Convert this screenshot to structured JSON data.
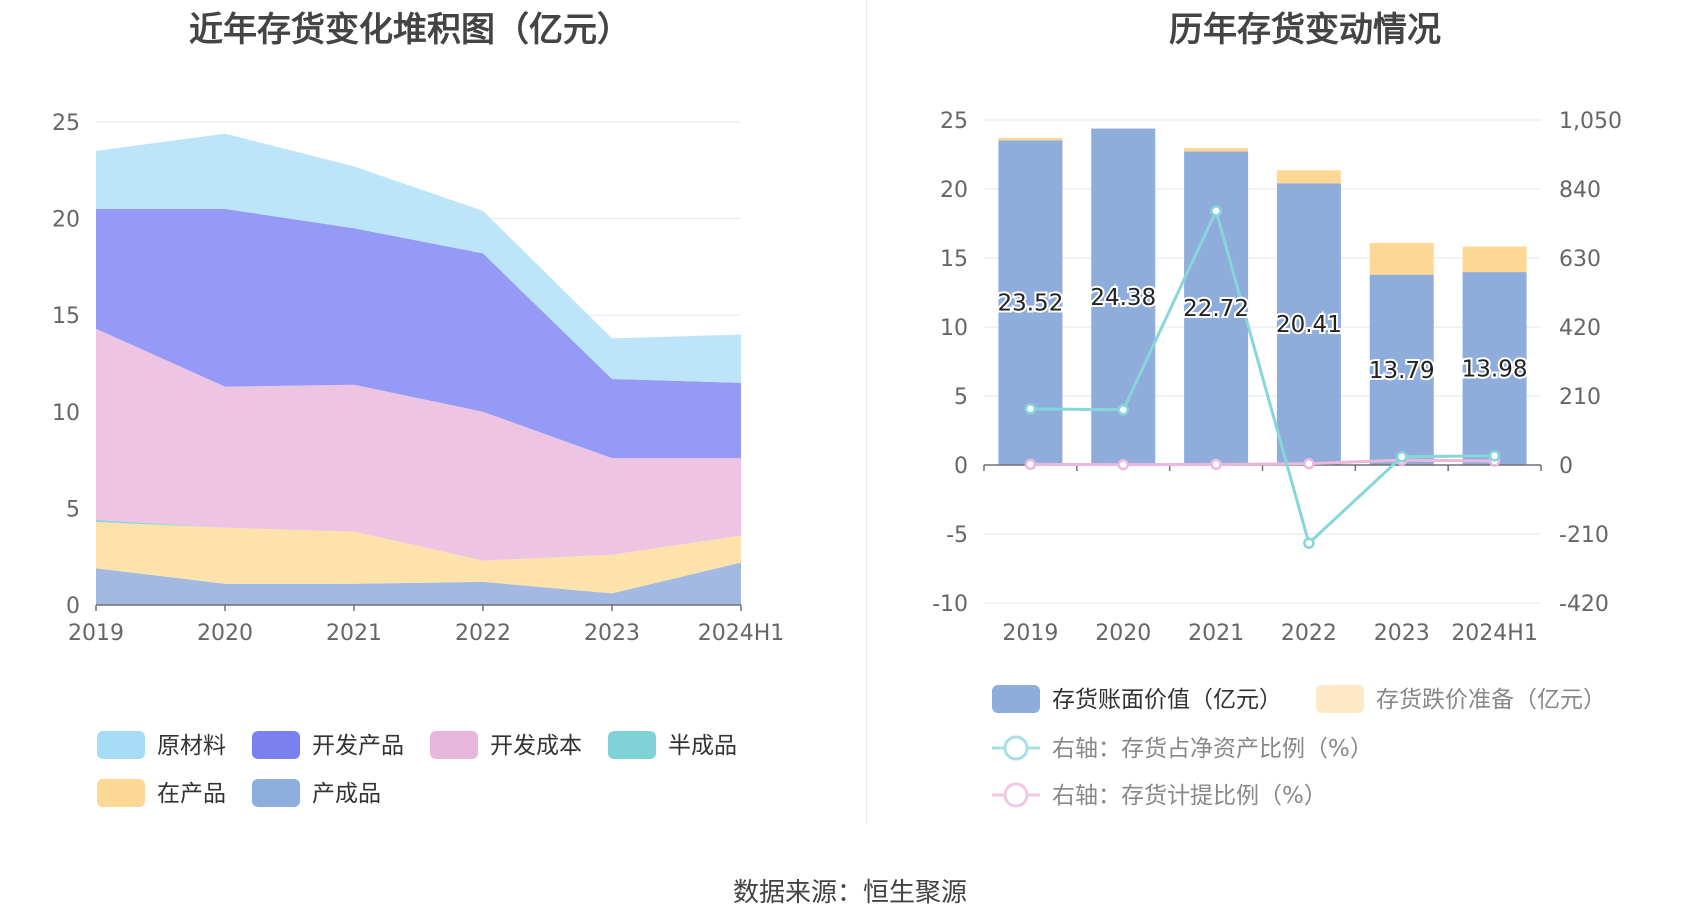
{
  "left_chart": {
    "title": "近年存货变化堆积图（亿元）",
    "chart_data": {
      "type": "area",
      "stacked": true,
      "categories": [
        "2019",
        "2020",
        "2021",
        "2022",
        "2023",
        "2024H1"
      ],
      "ylim": [
        0,
        25
      ],
      "yticks": [
        0,
        5,
        10,
        15,
        20,
        25
      ],
      "grid": true,
      "legend_position": "bottom",
      "series": [
        {
          "name": "产成品",
          "color": "#9db5e0",
          "values": [
            1.9,
            1.1,
            1.1,
            1.2,
            0.6,
            2.2
          ]
        },
        {
          "name": "在产品",
          "color": "#fde0a8",
          "values": [
            2.4,
            2.9,
            2.7,
            1.1,
            2.0,
            1.4
          ]
        },
        {
          "name": "半成品",
          "color": "#7fd3d6",
          "values": [
            0.1,
            0.0,
            0.0,
            0.0,
            0.0,
            0.0
          ]
        },
        {
          "name": "开发成本",
          "color": "#ecc2e1",
          "values": [
            9.9,
            7.3,
            7.6,
            7.7,
            5.0,
            4.0
          ]
        },
        {
          "name": "开发产品",
          "color": "#8e95f6",
          "values": [
            6.2,
            9.2,
            8.1,
            8.2,
            4.1,
            3.9
          ]
        },
        {
          "name": "原材料",
          "color": "#b8e4f9",
          "values": [
            3.0,
            3.9,
            3.2,
            2.2,
            2.1,
            2.5
          ]
        }
      ]
    },
    "legend": [
      {
        "label": "原材料",
        "color": "#a6dcf6"
      },
      {
        "label": "开发产品",
        "color": "#7b80f0"
      },
      {
        "label": "开发成本",
        "color": "#e7b6dc"
      },
      {
        "label": "半成品",
        "color": "#7fd3d6"
      },
      {
        "label": "在产品",
        "color": "#fdd894"
      },
      {
        "label": "产成品",
        "color": "#8eaedd"
      }
    ]
  },
  "right_chart": {
    "title": "历年存货变动情况",
    "chart_data": {
      "type": "bar",
      "stacked": true,
      "categories": [
        "2019",
        "2020",
        "2021",
        "2022",
        "2023",
        "2024H1"
      ],
      "ylim": [
        -10,
        25
      ],
      "yticks": [
        -10,
        -5,
        0,
        5,
        10,
        15,
        20,
        25
      ],
      "y2lim": [
        -420,
        1050
      ],
      "y2ticks": [
        "-420",
        "-210",
        "0",
        "210",
        "420",
        "630",
        "840",
        "1,050"
      ],
      "grid": true,
      "legend_position": "bottom",
      "series": [
        {
          "name": "存货账面价值（亿元）",
          "type": "bar",
          "color": "#8eaddb",
          "values": [
            23.52,
            24.38,
            22.72,
            20.41,
            13.79,
            13.98
          ],
          "labels": [
            "23.52",
            "24.38",
            "22.72",
            "20.41",
            "13.79",
            "13.98"
          ]
        },
        {
          "name": "存货跌价准备（亿元）",
          "type": "bar",
          "color": "#fdd894",
          "values": [
            0.18,
            0.0,
            0.25,
            0.95,
            2.3,
            1.85
          ]
        },
        {
          "name": "右轴：存货占净资产比例（%）",
          "type": "line",
          "axis": "right",
          "color": "#86d6da",
          "values": [
            171,
            168,
            773,
            -238,
            25,
            28
          ]
        },
        {
          "name": "右轴：存货计提比例（%）",
          "type": "line",
          "axis": "right",
          "color": "#eab8dc",
          "values": [
            2,
            1,
            2,
            4,
            15,
            12
          ]
        }
      ]
    },
    "legend": [
      {
        "label": "存货账面价值（亿元）",
        "color": "#8eaddb",
        "kind": "bar",
        "muted": false
      },
      {
        "label": "存货跌价准备（亿元）",
        "color": "#fde8c7",
        "kind": "bar",
        "muted": true
      },
      {
        "label": "右轴：存货占净资产比例（%）",
        "color": "#a6e0e3",
        "kind": "line",
        "muted": true
      },
      {
        "label": "右轴：存货计提比例（%）",
        "color": "#f0c9e4",
        "kind": "line",
        "muted": true
      }
    ]
  },
  "source": "数据来源：恒生聚源"
}
